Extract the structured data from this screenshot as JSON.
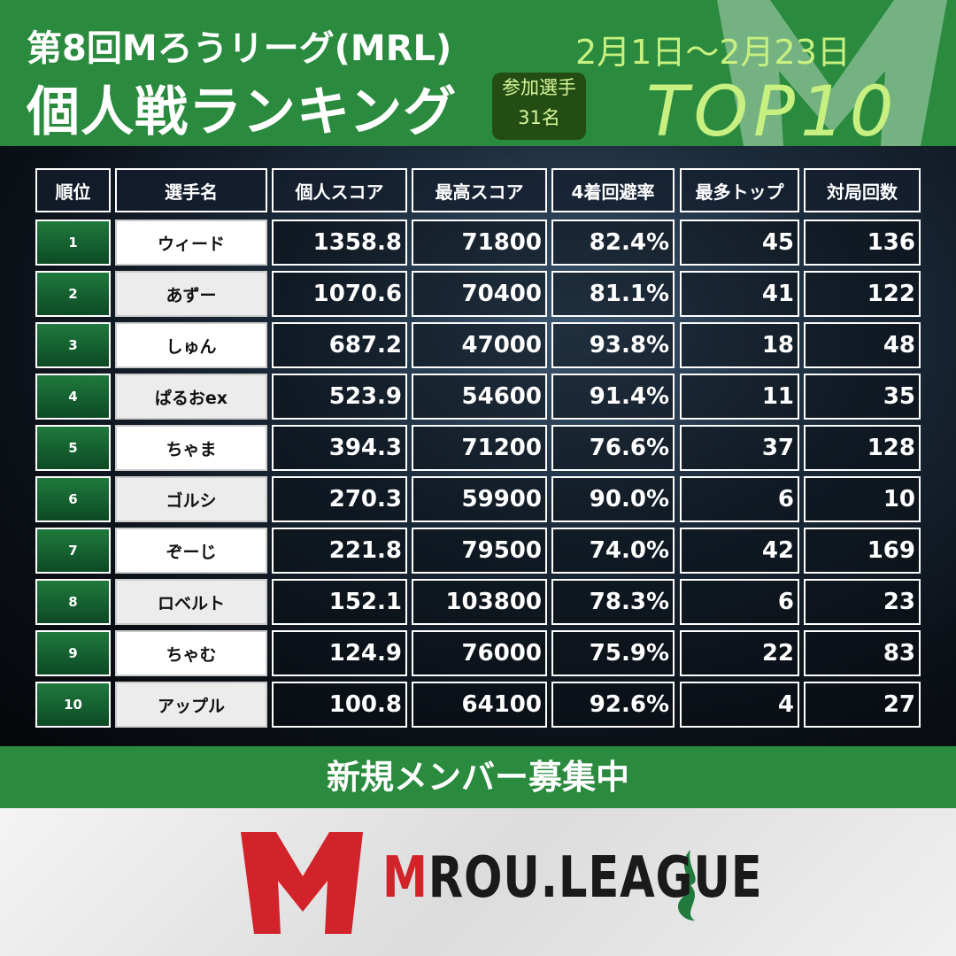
{
  "header": {
    "title": "第8回Mろうリーグ(MRL)",
    "subtitle": "個人戦ランキング",
    "badge_label": "参加選手",
    "badge_count": "31名",
    "date": "2月1日～2月23日",
    "top": "TOP10"
  },
  "table": {
    "columns": [
      "順位",
      "選手名",
      "個人スコア",
      "最高スコア",
      "4着回避率",
      "最多トップ",
      "対局回数"
    ],
    "rows": [
      [
        "1",
        "ウィード",
        "1358.8",
        "71800",
        "82.4%",
        "45",
        "136"
      ],
      [
        "2",
        "あずー",
        "1070.6",
        "70400",
        "81.1%",
        "41",
        "122"
      ],
      [
        "3",
        "しゅん",
        "687.2",
        "47000",
        "93.8%",
        "18",
        "48"
      ],
      [
        "4",
        "ぱるおex",
        "523.9",
        "54600",
        "91.4%",
        "11",
        "35"
      ],
      [
        "5",
        "ちゃま",
        "394.3",
        "71200",
        "76.6%",
        "37",
        "128"
      ],
      [
        "6",
        "ゴルシ",
        "270.3",
        "59900",
        "90.0%",
        "6",
        "10"
      ],
      [
        "7",
        "ぞーじ",
        "221.8",
        "79500",
        "74.0%",
        "42",
        "169"
      ],
      [
        "8",
        "ロベルト",
        "152.1",
        "103800",
        "78.3%",
        "6",
        "23"
      ],
      [
        "9",
        "ちゃむ",
        "124.9",
        "76000",
        "75.9%",
        "22",
        "83"
      ],
      [
        "10",
        "アップル",
        "100.8",
        "64100",
        "92.6%",
        "4",
        "27"
      ]
    ]
  },
  "footer": {
    "banner": "新規メンバー募集中",
    "logo": "MROU.LEAGUE"
  }
}
